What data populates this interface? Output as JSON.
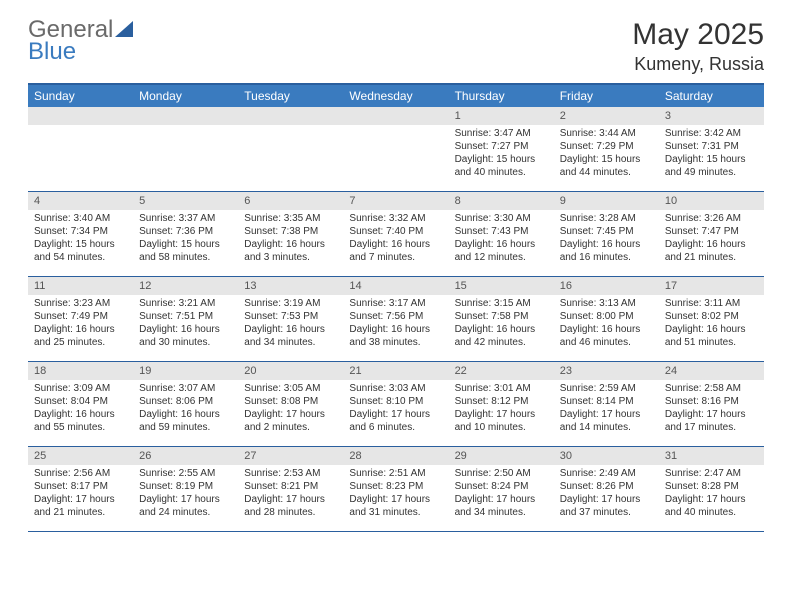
{
  "logo": {
    "word1": "General",
    "word2": "Blue"
  },
  "title": "May 2025",
  "location": "Kumeny, Russia",
  "header_bg": "#3a7bbf",
  "border_color": "#2a5f9e",
  "daynum_bg": "#e6e6e6",
  "weekdays": [
    "Sunday",
    "Monday",
    "Tuesday",
    "Wednesday",
    "Thursday",
    "Friday",
    "Saturday"
  ],
  "weeks": [
    [
      {
        "n": "",
        "sr": "",
        "ss": "",
        "dl1": "",
        "dl2": ""
      },
      {
        "n": "",
        "sr": "",
        "ss": "",
        "dl1": "",
        "dl2": ""
      },
      {
        "n": "",
        "sr": "",
        "ss": "",
        "dl1": "",
        "dl2": ""
      },
      {
        "n": "",
        "sr": "",
        "ss": "",
        "dl1": "",
        "dl2": ""
      },
      {
        "n": "1",
        "sr": "Sunrise: 3:47 AM",
        "ss": "Sunset: 7:27 PM",
        "dl1": "Daylight: 15 hours",
        "dl2": "and 40 minutes."
      },
      {
        "n": "2",
        "sr": "Sunrise: 3:44 AM",
        "ss": "Sunset: 7:29 PM",
        "dl1": "Daylight: 15 hours",
        "dl2": "and 44 minutes."
      },
      {
        "n": "3",
        "sr": "Sunrise: 3:42 AM",
        "ss": "Sunset: 7:31 PM",
        "dl1": "Daylight: 15 hours",
        "dl2": "and 49 minutes."
      }
    ],
    [
      {
        "n": "4",
        "sr": "Sunrise: 3:40 AM",
        "ss": "Sunset: 7:34 PM",
        "dl1": "Daylight: 15 hours",
        "dl2": "and 54 minutes."
      },
      {
        "n": "5",
        "sr": "Sunrise: 3:37 AM",
        "ss": "Sunset: 7:36 PM",
        "dl1": "Daylight: 15 hours",
        "dl2": "and 58 minutes."
      },
      {
        "n": "6",
        "sr": "Sunrise: 3:35 AM",
        "ss": "Sunset: 7:38 PM",
        "dl1": "Daylight: 16 hours",
        "dl2": "and 3 minutes."
      },
      {
        "n": "7",
        "sr": "Sunrise: 3:32 AM",
        "ss": "Sunset: 7:40 PM",
        "dl1": "Daylight: 16 hours",
        "dl2": "and 7 minutes."
      },
      {
        "n": "8",
        "sr": "Sunrise: 3:30 AM",
        "ss": "Sunset: 7:43 PM",
        "dl1": "Daylight: 16 hours",
        "dl2": "and 12 minutes."
      },
      {
        "n": "9",
        "sr": "Sunrise: 3:28 AM",
        "ss": "Sunset: 7:45 PM",
        "dl1": "Daylight: 16 hours",
        "dl2": "and 16 minutes."
      },
      {
        "n": "10",
        "sr": "Sunrise: 3:26 AM",
        "ss": "Sunset: 7:47 PM",
        "dl1": "Daylight: 16 hours",
        "dl2": "and 21 minutes."
      }
    ],
    [
      {
        "n": "11",
        "sr": "Sunrise: 3:23 AM",
        "ss": "Sunset: 7:49 PM",
        "dl1": "Daylight: 16 hours",
        "dl2": "and 25 minutes."
      },
      {
        "n": "12",
        "sr": "Sunrise: 3:21 AM",
        "ss": "Sunset: 7:51 PM",
        "dl1": "Daylight: 16 hours",
        "dl2": "and 30 minutes."
      },
      {
        "n": "13",
        "sr": "Sunrise: 3:19 AM",
        "ss": "Sunset: 7:53 PM",
        "dl1": "Daylight: 16 hours",
        "dl2": "and 34 minutes."
      },
      {
        "n": "14",
        "sr": "Sunrise: 3:17 AM",
        "ss": "Sunset: 7:56 PM",
        "dl1": "Daylight: 16 hours",
        "dl2": "and 38 minutes."
      },
      {
        "n": "15",
        "sr": "Sunrise: 3:15 AM",
        "ss": "Sunset: 7:58 PM",
        "dl1": "Daylight: 16 hours",
        "dl2": "and 42 minutes."
      },
      {
        "n": "16",
        "sr": "Sunrise: 3:13 AM",
        "ss": "Sunset: 8:00 PM",
        "dl1": "Daylight: 16 hours",
        "dl2": "and 46 minutes."
      },
      {
        "n": "17",
        "sr": "Sunrise: 3:11 AM",
        "ss": "Sunset: 8:02 PM",
        "dl1": "Daylight: 16 hours",
        "dl2": "and 51 minutes."
      }
    ],
    [
      {
        "n": "18",
        "sr": "Sunrise: 3:09 AM",
        "ss": "Sunset: 8:04 PM",
        "dl1": "Daylight: 16 hours",
        "dl2": "and 55 minutes."
      },
      {
        "n": "19",
        "sr": "Sunrise: 3:07 AM",
        "ss": "Sunset: 8:06 PM",
        "dl1": "Daylight: 16 hours",
        "dl2": "and 59 minutes."
      },
      {
        "n": "20",
        "sr": "Sunrise: 3:05 AM",
        "ss": "Sunset: 8:08 PM",
        "dl1": "Daylight: 17 hours",
        "dl2": "and 2 minutes."
      },
      {
        "n": "21",
        "sr": "Sunrise: 3:03 AM",
        "ss": "Sunset: 8:10 PM",
        "dl1": "Daylight: 17 hours",
        "dl2": "and 6 minutes."
      },
      {
        "n": "22",
        "sr": "Sunrise: 3:01 AM",
        "ss": "Sunset: 8:12 PM",
        "dl1": "Daylight: 17 hours",
        "dl2": "and 10 minutes."
      },
      {
        "n": "23",
        "sr": "Sunrise: 2:59 AM",
        "ss": "Sunset: 8:14 PM",
        "dl1": "Daylight: 17 hours",
        "dl2": "and 14 minutes."
      },
      {
        "n": "24",
        "sr": "Sunrise: 2:58 AM",
        "ss": "Sunset: 8:16 PM",
        "dl1": "Daylight: 17 hours",
        "dl2": "and 17 minutes."
      }
    ],
    [
      {
        "n": "25",
        "sr": "Sunrise: 2:56 AM",
        "ss": "Sunset: 8:17 PM",
        "dl1": "Daylight: 17 hours",
        "dl2": "and 21 minutes."
      },
      {
        "n": "26",
        "sr": "Sunrise: 2:55 AM",
        "ss": "Sunset: 8:19 PM",
        "dl1": "Daylight: 17 hours",
        "dl2": "and 24 minutes."
      },
      {
        "n": "27",
        "sr": "Sunrise: 2:53 AM",
        "ss": "Sunset: 8:21 PM",
        "dl1": "Daylight: 17 hours",
        "dl2": "and 28 minutes."
      },
      {
        "n": "28",
        "sr": "Sunrise: 2:51 AM",
        "ss": "Sunset: 8:23 PM",
        "dl1": "Daylight: 17 hours",
        "dl2": "and 31 minutes."
      },
      {
        "n": "29",
        "sr": "Sunrise: 2:50 AM",
        "ss": "Sunset: 8:24 PM",
        "dl1": "Daylight: 17 hours",
        "dl2": "and 34 minutes."
      },
      {
        "n": "30",
        "sr": "Sunrise: 2:49 AM",
        "ss": "Sunset: 8:26 PM",
        "dl1": "Daylight: 17 hours",
        "dl2": "and 37 minutes."
      },
      {
        "n": "31",
        "sr": "Sunrise: 2:47 AM",
        "ss": "Sunset: 8:28 PM",
        "dl1": "Daylight: 17 hours",
        "dl2": "and 40 minutes."
      }
    ]
  ]
}
